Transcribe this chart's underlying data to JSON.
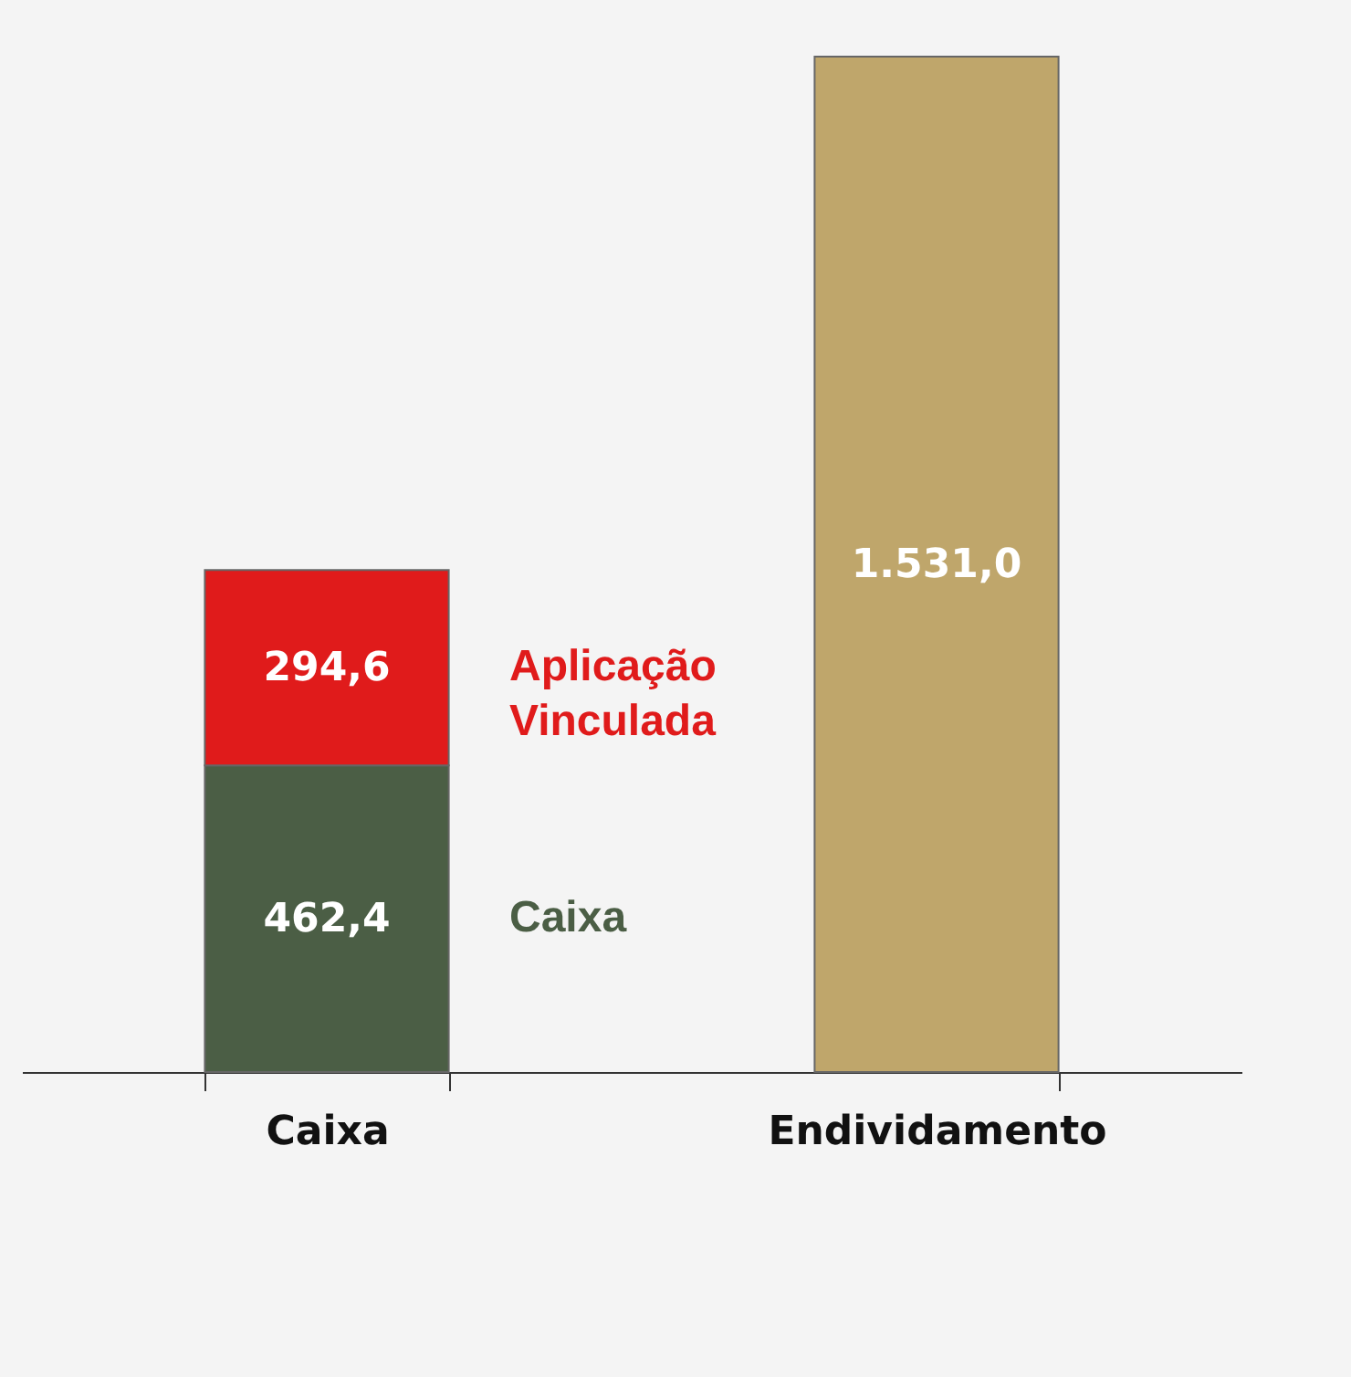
{
  "chart_data": {
    "type": "bar",
    "stacked": true,
    "categories": [
      "Caixa",
      "Endividamento"
    ],
    "series": [
      {
        "name": "Caixa",
        "color": "#4b5e45",
        "values": [
          462.4,
          null
        ],
        "value_labels": [
          "462,4",
          null
        ]
      },
      {
        "name": "Aplicação Vinculada",
        "color": "#e01b1b",
        "values": [
          294.6,
          null
        ],
        "value_labels": [
          "294,6",
          null
        ]
      },
      {
        "color": "#bfa66b",
        "values": [
          null,
          1531.0
        ],
        "value_labels": [
          null,
          "1.531,0"
        ]
      }
    ]
  }
}
